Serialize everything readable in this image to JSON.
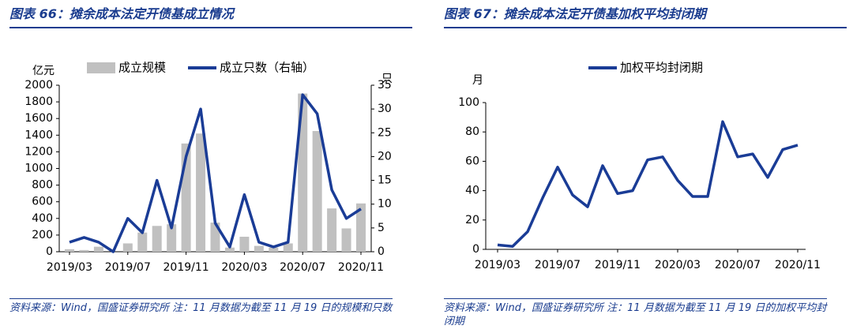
{
  "chart_data": [
    {
      "type": "bar",
      "title": "图表 66：摊余成本法定开债基成立情况",
      "source": "资料来源：Wind，国盛证券研究所 注：11 月数据为截至 11 月 19 日的规模和只数",
      "ylabel": "亿元",
      "y2label": "只",
      "categories": [
        "2019/03",
        null,
        null,
        null,
        "2019/07",
        null,
        null,
        null,
        "2019/11",
        null,
        null,
        null,
        "2020/03",
        null,
        null,
        null,
        "2020/07",
        null,
        null,
        null,
        "2020/11"
      ],
      "series": [
        {
          "name": "成立规模",
          "type": "bar",
          "color": "#c0c0c0",
          "values": [
            30,
            20,
            60,
            0,
            100,
            230,
            310,
            330,
            1300,
            1420,
            350,
            50,
            180,
            70,
            50,
            100,
            1900,
            1450,
            520,
            280,
            580
          ]
        },
        {
          "name": "成立只数（右轴）",
          "type": "line",
          "axis": "y2",
          "color": "#1a3c96",
          "values": [
            2,
            3,
            2,
            0,
            7,
            4,
            15,
            5,
            20,
            30,
            6,
            1,
            12,
            2,
            1,
            2,
            33,
            29,
            13,
            7,
            9
          ]
        }
      ],
      "ylim": [
        0,
        2000
      ],
      "yticks": [
        0,
        200,
        400,
        600,
        800,
        1000,
        1200,
        1400,
        1600,
        1800,
        2000
      ],
      "y2lim": [
        0,
        35
      ],
      "y2ticks": [
        0,
        5,
        10,
        15,
        20,
        25,
        30,
        35
      ],
      "grid": false
    },
    {
      "type": "line",
      "title": "图表 67：摊余成本法定开债基加权平均封闭期",
      "source": "资料来源：Wind，国盛证券研究所 注：11 月数据为截至 11 月 19 日的加权平均封闭期",
      "ylabel": "月",
      "categories": [
        "2019/03",
        null,
        null,
        null,
        "2019/07",
        null,
        null,
        null,
        "2019/11",
        null,
        null,
        null,
        "2020/03",
        null,
        null,
        null,
        "2020/07",
        null,
        null,
        null,
        "2020/11"
      ],
      "series": [
        {
          "name": "加权平均封闭期",
          "type": "line",
          "color": "#1a3c96",
          "values": [
            3,
            2,
            12,
            35,
            56,
            37,
            29,
            57,
            38,
            40,
            61,
            63,
            47,
            36,
            36,
            87,
            63,
            65,
            49,
            68,
            71
          ]
        }
      ],
      "ylim": [
        0,
        100
      ],
      "yticks": [
        0,
        20,
        40,
        60,
        80,
        100
      ],
      "grid": false
    }
  ]
}
